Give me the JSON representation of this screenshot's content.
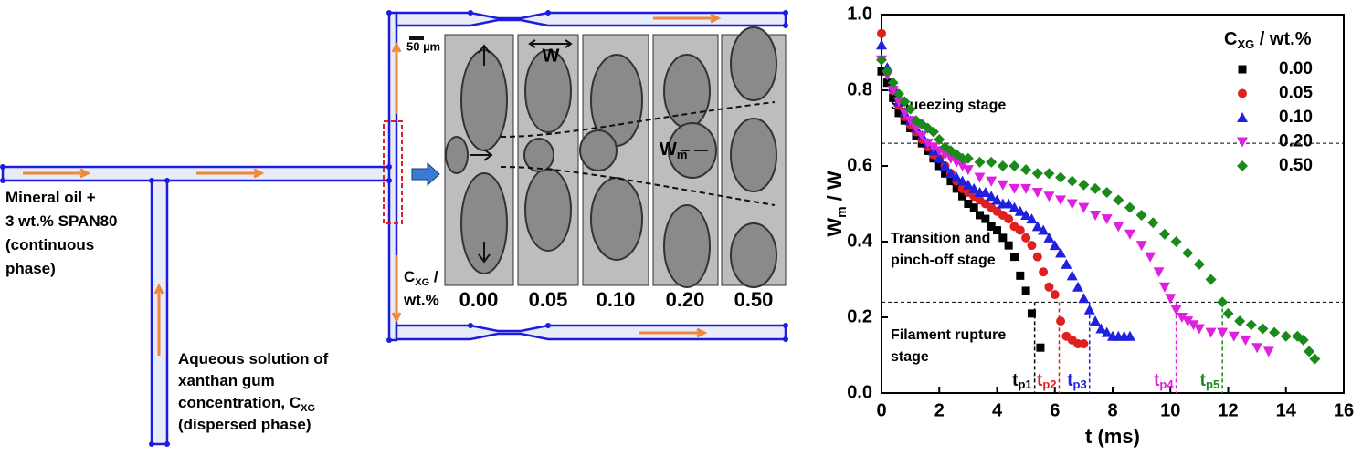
{
  "diagram": {
    "oil_lines": [
      "Mineral oil +",
      "3 wt.% SPAN80",
      "(continuous",
      "phase)"
    ],
    "aq_lines": [
      "Aqueous solution of",
      "xanthan gum",
      {
        "text": "concentration, C",
        "sub": "XG"
      },
      "(dispersed phase)"
    ],
    "scale_bar": "50 µm",
    "width_label": "W",
    "wm_label": {
      "text": "W",
      "sub": "m"
    },
    "conc_label": {
      "text": "C",
      "sub": "XG",
      "rest": " /",
      "line2": "wt.%"
    },
    "panels": [
      "0.00",
      "0.05",
      "0.10",
      "0.20",
      "0.50"
    ]
  },
  "chart_data": {
    "type": "scatter",
    "xlabel": "t (ms)",
    "ylabel": {
      "main": "W",
      "sub": "m",
      "rest": " / W"
    },
    "xlim": [
      0,
      16
    ],
    "xticks": [
      0,
      2,
      4,
      6,
      8,
      10,
      12,
      14,
      16
    ],
    "ylim": [
      0,
      1.0
    ],
    "yticks": [
      {
        "value": 0,
        "label": "0.0"
      },
      0.2,
      0.4,
      0.6,
      0.8,
      {
        "value": 1.0,
        "label": "1.0"
      }
    ],
    "legend": "upper right",
    "legend_title": {
      "main": "C",
      "sub": "XG",
      "rest": " / wt.%"
    },
    "hlines": [
      0.66,
      0.24
    ],
    "annotations": [
      [
        "Squeezing stage"
      ],
      [
        "Transition and",
        "pinch-off stage"
      ],
      [
        "Filament rupture",
        "stage"
      ]
    ],
    "tp_markers": [
      {
        "text": "t",
        "sub": "p1",
        "x": 5.3,
        "y": 0.24,
        "color": "#000000"
      },
      {
        "text": "t",
        "sub": "p2",
        "x": 6.15,
        "y": 0.24,
        "color": "#e02020"
      },
      {
        "text": "t",
        "sub": "p3",
        "x": 7.2,
        "y": 0.24,
        "color": "#2020e0"
      },
      {
        "text": "t",
        "sub": "p4",
        "x": 10.2,
        "y": 0.24,
        "color": "#e020e0"
      },
      {
        "text": "t",
        "sub": "p5",
        "x": 11.8,
        "y": 0.24,
        "color": "#1a8a1a"
      }
    ],
    "series": [
      {
        "name": "0.00",
        "color": "#000000",
        "marker": "square",
        "x": [
          0,
          0.2,
          0.4,
          0.6,
          0.8,
          1.0,
          1.2,
          1.4,
          1.6,
          1.8,
          2.0,
          2.2,
          2.4,
          2.6,
          2.8,
          3.0,
          3.2,
          3.4,
          3.6,
          3.8,
          4.0,
          4.2,
          4.4,
          4.6,
          4.8,
          5.0,
          5.2,
          5.5
        ],
        "values": [
          0.85,
          0.82,
          0.78,
          0.74,
          0.72,
          0.7,
          0.68,
          0.66,
          0.64,
          0.62,
          0.6,
          0.58,
          0.56,
          0.54,
          0.52,
          0.5,
          0.49,
          0.47,
          0.46,
          0.44,
          0.43,
          0.41,
          0.39,
          0.36,
          0.31,
          0.27,
          0.21,
          0.12
        ]
      },
      {
        "name": "0.05",
        "color": "#e02020",
        "marker": "circle",
        "x": [
          0,
          0.2,
          0.4,
          0.6,
          0.8,
          1.0,
          1.2,
          1.4,
          1.6,
          1.8,
          2.0,
          2.2,
          2.4,
          2.6,
          2.8,
          3.0,
          3.2,
          3.4,
          3.6,
          3.8,
          4.0,
          4.2,
          4.4,
          4.6,
          4.8,
          5.0,
          5.2,
          5.4,
          5.6,
          5.8,
          6.0,
          6.2,
          6.4,
          6.6,
          6.8,
          7.0
        ],
        "values": [
          0.95,
          0.85,
          0.8,
          0.76,
          0.73,
          0.71,
          0.69,
          0.67,
          0.65,
          0.63,
          0.62,
          0.6,
          0.58,
          0.56,
          0.54,
          0.53,
          0.52,
          0.51,
          0.5,
          0.49,
          0.48,
          0.47,
          0.46,
          0.44,
          0.43,
          0.41,
          0.39,
          0.36,
          0.32,
          0.28,
          0.26,
          0.19,
          0.15,
          0.14,
          0.13,
          0.13
        ]
      },
      {
        "name": "0.10",
        "color": "#2020e0",
        "marker": "triangle-up",
        "x": [
          0,
          0.2,
          0.4,
          0.6,
          0.8,
          1.0,
          1.2,
          1.4,
          1.6,
          1.8,
          2.0,
          2.2,
          2.4,
          2.6,
          2.8,
          3.0,
          3.2,
          3.4,
          3.6,
          3.8,
          4.0,
          4.2,
          4.4,
          4.6,
          4.8,
          5.0,
          5.2,
          5.4,
          5.6,
          5.8,
          6.0,
          6.2,
          6.4,
          6.6,
          6.8,
          7.0,
          7.2,
          7.4,
          7.6,
          7.8,
          8.0,
          8.2,
          8.4,
          8.6
        ],
        "values": [
          0.92,
          0.86,
          0.81,
          0.77,
          0.74,
          0.72,
          0.7,
          0.68,
          0.66,
          0.64,
          0.62,
          0.6,
          0.58,
          0.57,
          0.56,
          0.55,
          0.54,
          0.53,
          0.53,
          0.52,
          0.51,
          0.5,
          0.5,
          0.49,
          0.48,
          0.47,
          0.46,
          0.44,
          0.43,
          0.41,
          0.39,
          0.37,
          0.34,
          0.31,
          0.28,
          0.25,
          0.22,
          0.19,
          0.17,
          0.16,
          0.15,
          0.15,
          0.15,
          0.15
        ]
      },
      {
        "name": "0.20",
        "color": "#e020e0",
        "marker": "triangle-down",
        "x": [
          0,
          0.2,
          0.4,
          0.6,
          0.8,
          1.0,
          1.2,
          1.4,
          1.6,
          1.8,
          2.0,
          2.2,
          2.4,
          2.6,
          2.8,
          3.0,
          3.4,
          3.8,
          4.2,
          4.6,
          5.0,
          5.4,
          5.8,
          6.2,
          6.6,
          7.0,
          7.4,
          7.8,
          8.2,
          8.6,
          9.0,
          9.3,
          9.6,
          9.8,
          10.0,
          10.2,
          10.4,
          10.6,
          10.8,
          11.0,
          11.4,
          11.8,
          12.2,
          12.6,
          13.0,
          13.4
        ],
        "values": [
          0.88,
          0.84,
          0.8,
          0.77,
          0.74,
          0.72,
          0.7,
          0.68,
          0.66,
          0.65,
          0.64,
          0.63,
          0.62,
          0.61,
          0.6,
          0.59,
          0.57,
          0.56,
          0.55,
          0.54,
          0.54,
          0.53,
          0.52,
          0.51,
          0.5,
          0.49,
          0.47,
          0.46,
          0.44,
          0.42,
          0.39,
          0.36,
          0.32,
          0.28,
          0.25,
          0.22,
          0.2,
          0.19,
          0.18,
          0.17,
          0.16,
          0.16,
          0.15,
          0.14,
          0.12,
          0.11
        ]
      },
      {
        "name": "0.50",
        "color": "#1a8a1a",
        "marker": "diamond",
        "x": [
          0,
          0.2,
          0.4,
          0.6,
          0.8,
          1.0,
          1.2,
          1.4,
          1.6,
          1.8,
          2.0,
          2.2,
          2.4,
          2.6,
          2.8,
          3.0,
          3.4,
          3.8,
          4.2,
          4.6,
          5.0,
          5.4,
          5.8,
          6.2,
          6.6,
          7.0,
          7.4,
          7.8,
          8.2,
          8.6,
          9.0,
          9.4,
          9.8,
          10.2,
          10.6,
          11.0,
          11.4,
          11.8,
          12.0,
          12.4,
          12.8,
          13.2,
          13.6,
          14.0,
          14.4,
          14.6,
          14.8,
          15.0
        ],
        "values": [
          0.88,
          0.85,
          0.82,
          0.79,
          0.77,
          0.75,
          0.72,
          0.71,
          0.7,
          0.69,
          0.67,
          0.65,
          0.64,
          0.63,
          0.62,
          0.62,
          0.61,
          0.61,
          0.6,
          0.6,
          0.59,
          0.58,
          0.58,
          0.57,
          0.56,
          0.55,
          0.54,
          0.53,
          0.51,
          0.49,
          0.47,
          0.45,
          0.42,
          0.4,
          0.37,
          0.34,
          0.3,
          0.24,
          0.21,
          0.19,
          0.18,
          0.17,
          0.16,
          0.15,
          0.15,
          0.14,
          0.11,
          0.09
        ]
      }
    ]
  }
}
